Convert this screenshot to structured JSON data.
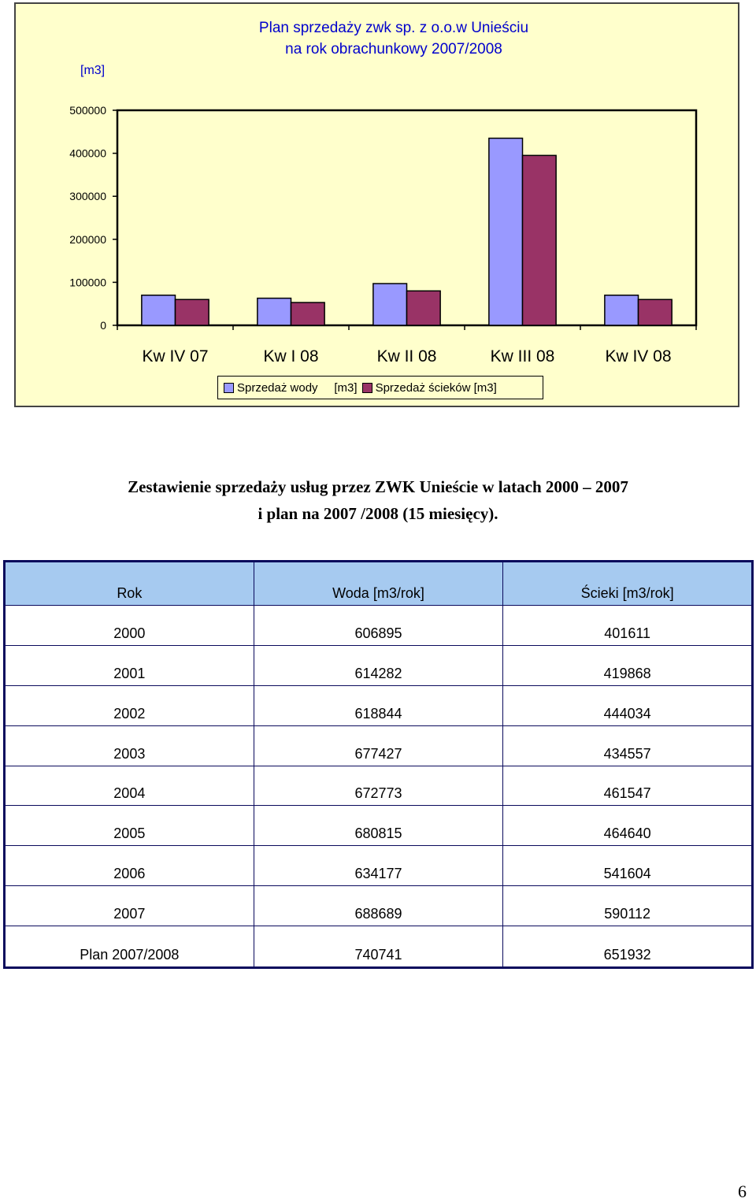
{
  "chart_data": {
    "type": "bar",
    "title_lines": [
      "Plan sprzedaży zwk sp. z o.o.w Unieściu",
      "na rok obrachunkowy 2007/2008"
    ],
    "ylabel": "[m3]",
    "categories": [
      "Kw IV 07",
      "Kw I 08",
      "Kw II 08",
      "Kw III 08",
      "Kw IV 08"
    ],
    "y_ticks": [
      "0",
      "100000",
      "200000",
      "300000",
      "400000",
      "500000"
    ],
    "ylim": [
      0,
      500000
    ],
    "series": [
      {
        "name": "Sprzedaż wody     [m3]",
        "color": "#9999ff",
        "values": [
          70000,
          63000,
          97000,
          435000,
          70000
        ]
      },
      {
        "name": "Sprzedaż ścieków [m3]",
        "color": "#993366",
        "values": [
          60000,
          53000,
          80000,
          395000,
          60000
        ]
      }
    ],
    "grid": false,
    "legend_position": "bottom"
  },
  "heading": {
    "line1": "Zestawienie sprzedaży usług przez ZWK Unieście w latach 2000 – 2007",
    "line2": "i plan na 2007 /2008 (15 miesięcy)."
  },
  "table": {
    "headers": [
      "Rok",
      "Woda [m3/rok]",
      "Ścieki [m3/rok]"
    ],
    "rows": [
      [
        "2000",
        "606895",
        "401611"
      ],
      [
        "2001",
        "614282",
        "419868"
      ],
      [
        "2002",
        "618844",
        "444034"
      ],
      [
        "2003",
        "677427",
        "434557"
      ],
      [
        "2004",
        "672773",
        "461547"
      ],
      [
        "2005",
        "680815",
        "464640"
      ],
      [
        "2006",
        "634177",
        "541604"
      ],
      [
        "2007",
        "688689",
        "590112"
      ],
      [
        "Plan 2007/2008",
        "740741",
        "651932"
      ]
    ]
  },
  "page_number": "6"
}
